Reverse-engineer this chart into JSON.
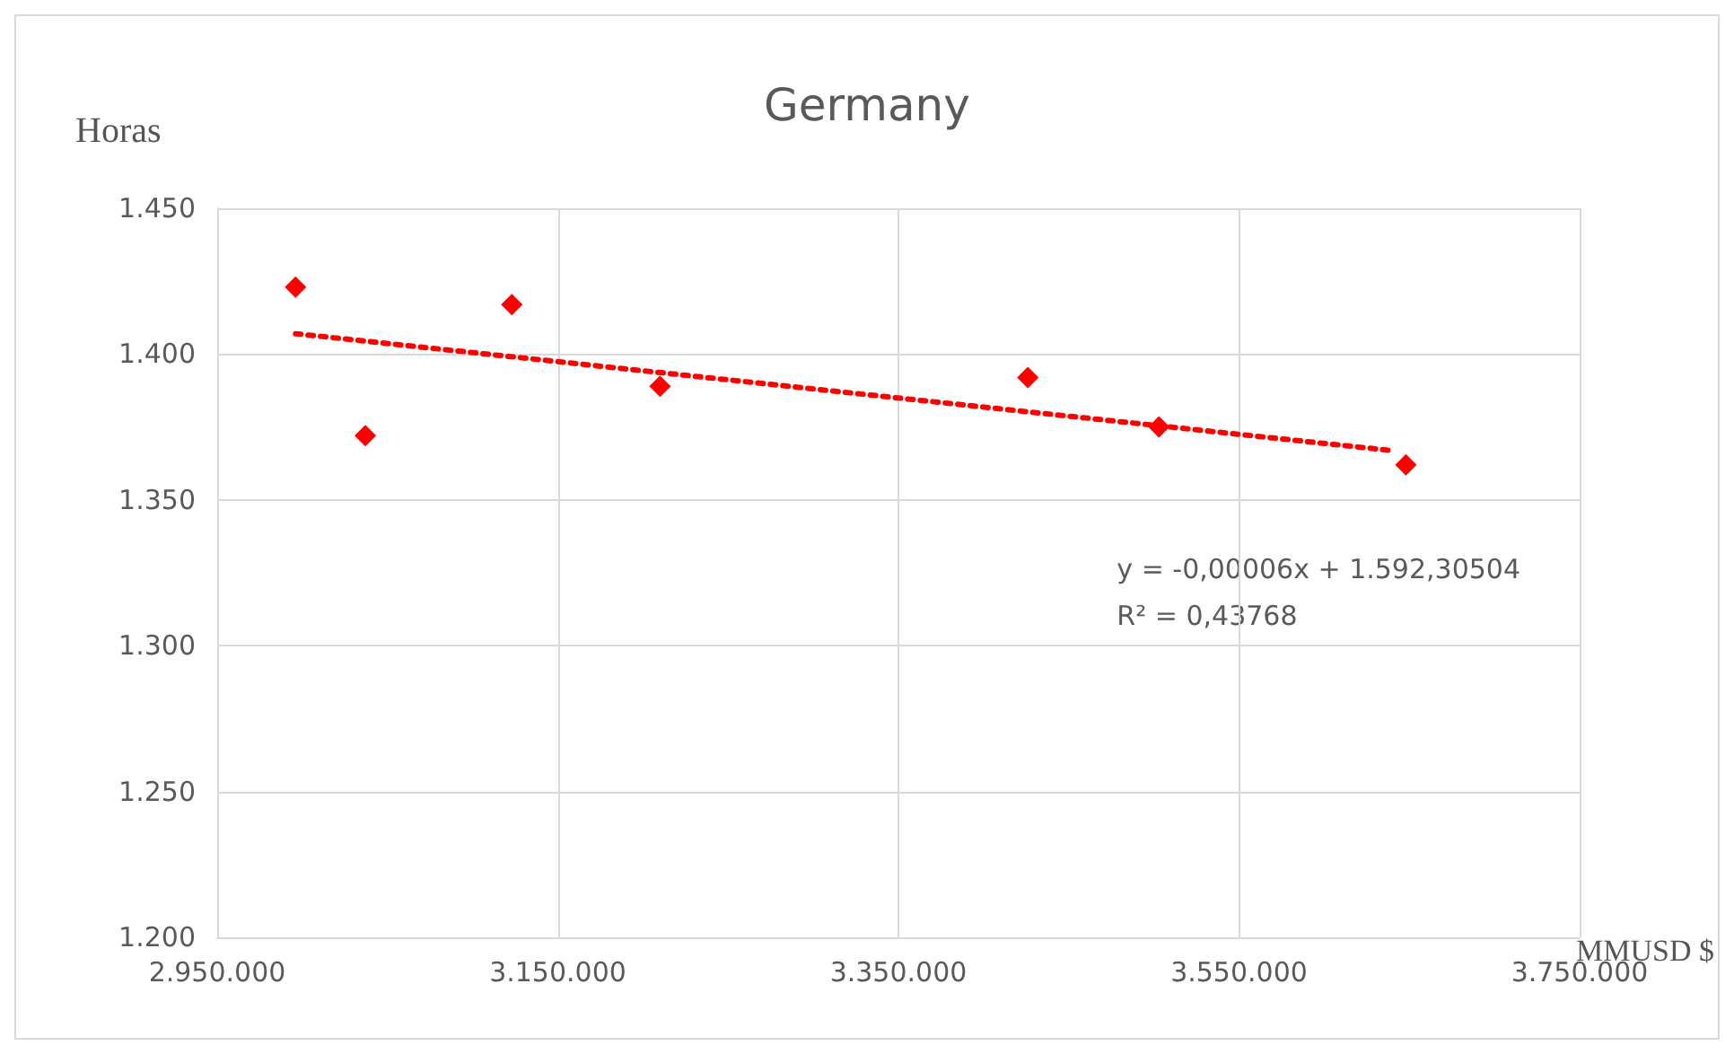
{
  "chart_data": {
    "type": "scatter",
    "title": "Germany",
    "xlabel": "MMUSD $",
    "ylabel": "Horas",
    "xlim": [
      2950000,
      3750000
    ],
    "xticks": [
      {
        "value": 2950000,
        "label": "2.950.000"
      },
      {
        "value": 3150000,
        "label": "3.150.000"
      },
      {
        "value": 3350000,
        "label": "3.350.000"
      },
      {
        "value": 3550000,
        "label": "3.550.000"
      },
      {
        "value": 3750000,
        "label": "3.750.000"
      }
    ],
    "ylim": [
      1200,
      1450
    ],
    "yticks": [
      {
        "value": 1200,
        "label": "1.200"
      },
      {
        "value": 1250,
        "label": "1.250"
      },
      {
        "value": 1300,
        "label": "1.300"
      },
      {
        "value": 1350,
        "label": "1.350"
      },
      {
        "value": 1400,
        "label": "1.400"
      },
      {
        "value": 1450,
        "label": "1.450"
      }
    ],
    "grid": true,
    "series": [
      {
        "color": "#ff0000",
        "marker": "diamond",
        "x": [
          2996000,
          3037000,
          3123000,
          3210000,
          3426000,
          3503000,
          3648000
        ],
        "values": [
          1423,
          1372,
          1417,
          1389,
          1392,
          1375,
          1362
        ]
      },
      {
        "type": "line",
        "color": "#ff0000",
        "marker": "none",
        "line_style": "dotted",
        "x": [
          2996000,
          3638000
        ],
        "values": [
          1407,
          1367
        ]
      }
    ],
    "annotations": [
      "y = -0,00006x + 1.592,30504\nR² = 0,43768"
    ]
  }
}
